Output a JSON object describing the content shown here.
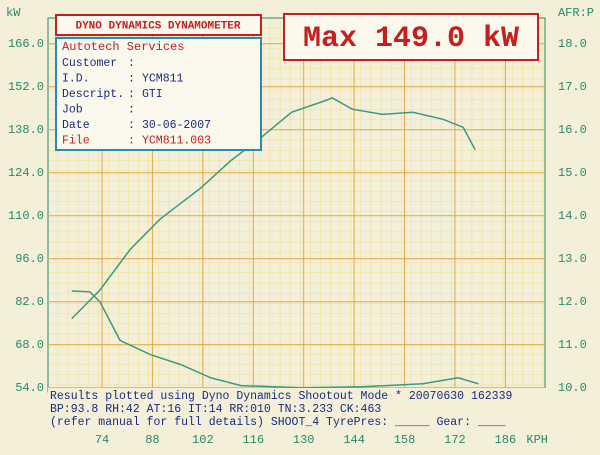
{
  "chart_data": {
    "type": "line",
    "header_box": "DYNO DYNAMICS DYNAMOMETER",
    "max_label": "Max 149.0 kW",
    "info": {
      "company": "Autotech Services",
      "separator": ":",
      "fields": [
        {
          "label": "Customer"
        },
        {
          "label": "I.D.",
          "value": "YCM811"
        },
        {
          "label": "Descript.",
          "value": "GTI"
        },
        {
          "label": "Job"
        },
        {
          "label": "Date",
          "value": "30-06-2007"
        },
        {
          "label": "File",
          "value": "YCM811.003"
        }
      ]
    },
    "notes": [
      "Results plotted using Dyno Dynamics Shootout Mode * 20070630 162339",
      "BP:93.8  RH:42 AT:16 IT:14  RR:010 TN:3.233 CK:463",
      "(refer manual for full details) SHOOT_4  TyrePres: _____  Gear: ____"
    ],
    "xlabel": "KPH",
    "ylabel": "kW",
    "y2label": "AFR:P",
    "xlim": [
      59,
      197
    ],
    "xticks": [
      74,
      88,
      102,
      116,
      130,
      144,
      158,
      172,
      186
    ],
    "ylim": [
      52.6,
      174.4
    ],
    "yticks": [
      {
        "value": 54,
        "label": "54.0"
      },
      {
        "value": 68,
        "label": "68.0"
      },
      {
        "value": 82,
        "label": "82.0"
      },
      {
        "value": 96,
        "label": "96.0"
      },
      {
        "value": 110,
        "label": "110.0"
      },
      {
        "value": 124,
        "label": "124.0"
      },
      {
        "value": 138,
        "label": "138.0"
      },
      {
        "value": 152,
        "label": "152.0"
      },
      {
        "value": 166,
        "label": "166.0"
      }
    ],
    "y2lim": [
      9.9,
      18.6
    ],
    "y2ticks": [
      {
        "value": 10,
        "label": "10.0"
      },
      {
        "value": 11,
        "label": "11.0"
      },
      {
        "value": 12,
        "label": "12.0"
      },
      {
        "value": 13,
        "label": "13.0"
      },
      {
        "value": 14,
        "label": "14.0"
      },
      {
        "value": 15,
        "label": "15.0"
      },
      {
        "value": 16,
        "label": "16.0"
      },
      {
        "value": 17,
        "label": "17.0"
      },
      {
        "value": 18,
        "label": "18.0"
      }
    ],
    "grid": true,
    "series": [
      {
        "color": "#3a9a80",
        "x": [
          65.6,
          73.4,
          81.8,
          90.2,
          101.4,
          109.8,
          118.2,
          126.6,
          136.5,
          137.9,
          143.5,
          151.9,
          160.3,
          168.7,
          174.3,
          177.6
        ],
        "values": [
          76.5,
          85.8,
          99,
          109,
          119,
          128,
          135.5,
          143.7,
          147.7,
          148.4,
          144.7,
          143,
          143.7,
          141.4,
          138.8,
          131.5
        ]
      },
      {
        "color": "#3a9a80",
        "axis": "y2",
        "x": [
          65.6,
          70.6,
          73.4,
          79,
          87.4,
          95.8,
          104.2,
          112.6,
          129.4,
          146.2,
          163,
          172.9,
          178.5
        ],
        "values": [
          12.25,
          12.23,
          12.0,
          11.1,
          10.77,
          10.54,
          10.23,
          10.05,
          10.0,
          10.02,
          10.09,
          10.23,
          10.09
        ]
      }
    ]
  }
}
